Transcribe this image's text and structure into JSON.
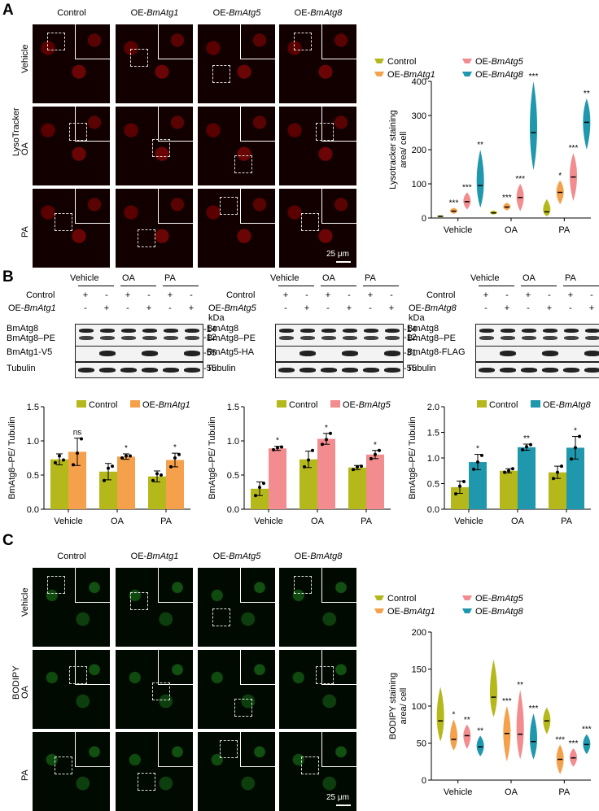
{
  "panels": {
    "a": "A",
    "b": "B",
    "c": "C"
  },
  "microscopy_columns": [
    "Control",
    "OE-BmAtg1",
    "OE-BmAtg5",
    "OE-BmAtg8"
  ],
  "microscopy_rows": [
    "Vehicle",
    "OA",
    "PA"
  ],
  "stain_a": "LysoTracker",
  "stain_c": "BODIPY",
  "scalebar_text": "25 μm",
  "western": {
    "groups": [
      "Vehicle",
      "OA",
      "PA"
    ],
    "control_label": "Control",
    "kda": "kDa",
    "signs_control": [
      "+",
      "-",
      "+",
      "-",
      "+",
      "-"
    ],
    "signs_oe": [
      "-",
      "+",
      "-",
      "+",
      "-",
      "+"
    ],
    "blots": [
      {
        "oe_label": "OE-BmAtg1",
        "rows": [
          "BmAtg8",
          "BmAtg8–PE",
          "BmAtg1-V5",
          "Tubulin"
        ],
        "markers": [
          "14",
          "12",
          "55",
          "55"
        ]
      },
      {
        "oe_label": "OE-BmAtg5",
        "rows": [
          "BmAtg8",
          "BmAtg8–PE",
          "BmAtg5-HA",
          "Tubulin"
        ],
        "markers": [
          "14",
          "12",
          "31",
          "55"
        ]
      },
      {
        "oe_label": "OE-BmAtg8",
        "rows": [
          "BmAtg8",
          "BmAtg8–PE",
          "BmAtg8-FLAG",
          "Tubulin"
        ],
        "markers": [
          "14",
          "12",
          "14",
          "55"
        ]
      }
    ]
  },
  "colors": {
    "control": "#b5b81a",
    "atg1": "#f5a04a",
    "atg5": "#f28c8f",
    "atg8": "#1f98ad"
  },
  "chart_data": [
    {
      "type": "violin",
      "id": "lyso",
      "ylabel": "Lysotracker staining area/ cell",
      "ylim": [
        0,
        400
      ],
      "yticks": [
        0,
        100,
        200,
        300,
        400
      ],
      "categories": [
        "Vehicle",
        "OA",
        "PA"
      ],
      "legend": [
        "Control",
        "OE-BmAtg1",
        "OE-BmAtg5",
        "OE-BmAtg8"
      ],
      "series": [
        {
          "name": "Control",
          "color": "#b5b81a",
          "medians": [
            5,
            15,
            18
          ],
          "ranges": [
            [
              2,
              8
            ],
            [
              10,
              22
            ],
            [
              5,
              55
            ]
          ],
          "sig": [
            "",
            "",
            ""
          ]
        },
        {
          "name": "OE-BmAtg1",
          "color": "#f5a04a",
          "medians": [
            20,
            32,
            75
          ],
          "ranges": [
            [
              12,
              30
            ],
            [
              22,
              45
            ],
            [
              40,
              110
            ]
          ],
          "sig": [
            "***",
            "***",
            "*"
          ]
        },
        {
          "name": "OE-BmAtg5",
          "color": "#f28c8f",
          "medians": [
            48,
            60,
            120
          ],
          "ranges": [
            [
              25,
              75
            ],
            [
              20,
              100
            ],
            [
              50,
              190
            ]
          ],
          "sig": [
            "***",
            "***",
            "***"
          ]
        },
        {
          "name": "OE-BmAtg8",
          "color": "#1f98ad",
          "medians": [
            95,
            250,
            280
          ],
          "ranges": [
            [
              30,
              200
            ],
            [
              140,
              400
            ],
            [
              200,
              350
            ]
          ],
          "sig": [
            "**",
            "***",
            "**"
          ]
        }
      ]
    },
    {
      "type": "bar",
      "id": "wb1",
      "ylabel": "BmAtg8–PE/ Tubulin",
      "ylim": [
        0,
        1.5
      ],
      "yticks": [
        0.0,
        0.5,
        1.0,
        1.5
      ],
      "categories": [
        "Vehicle",
        "OA",
        "PA"
      ],
      "legend": [
        "Control",
        "OE-BmAtg1"
      ],
      "series": [
        {
          "name": "Control",
          "color": "#b5b81a",
          "values": [
            0.73,
            0.55,
            0.48
          ],
          "errors": [
            0.08,
            0.12,
            0.08
          ],
          "points": [
            [
              0.68,
              0.78,
              0.72
            ],
            [
              0.42,
              0.6,
              0.63
            ],
            [
              0.42,
              0.52,
              0.5
            ]
          ]
        },
        {
          "name": "OE-BmAtg1",
          "color": "#f5a04a",
          "values": [
            0.84,
            0.77,
            0.72
          ],
          "errors": [
            0.2,
            0.04,
            0.1
          ],
          "points": [
            [
              0.65,
              0.82,
              1.03
            ],
            [
              0.75,
              0.78,
              0.78
            ],
            [
              0.62,
              0.75,
              0.8
            ]
          ]
        }
      ],
      "sig": [
        "ns",
        "*",
        "*"
      ]
    },
    {
      "type": "bar",
      "id": "wb2",
      "ylabel": "BmAtg8–PE/ Tubulin",
      "ylim": [
        0,
        1.5
      ],
      "yticks": [
        0.0,
        0.5,
        1.0,
        1.5
      ],
      "categories": [
        "Vehicle",
        "OA",
        "PA"
      ],
      "legend": [
        "Control",
        "OE-BmAtg5"
      ],
      "series": [
        {
          "name": "Control",
          "color": "#b5b81a",
          "values": [
            0.3,
            0.73,
            0.61
          ],
          "errors": [
            0.1,
            0.12,
            0.03
          ],
          "points": [
            [
              0.2,
              0.32,
              0.38
            ],
            [
              0.62,
              0.72,
              0.86
            ],
            [
              0.58,
              0.62,
              0.63
            ]
          ]
        },
        {
          "name": "OE-BmAtg5",
          "color": "#f28c8f",
          "values": [
            0.89,
            1.03,
            0.8
          ],
          "errors": [
            0.03,
            0.08,
            0.06
          ],
          "points": [
            [
              0.87,
              0.9,
              0.91
            ],
            [
              0.95,
              1.02,
              1.11
            ],
            [
              0.74,
              0.8,
              0.86
            ]
          ]
        }
      ],
      "sig": [
        "*",
        "*",
        "*"
      ]
    },
    {
      "type": "bar",
      "id": "wb3",
      "ylabel": "BmAtg8–PE/ Tubulin",
      "ylim": [
        0,
        2.0
      ],
      "yticks": [
        0.0,
        0.5,
        1.0,
        1.5,
        2.0
      ],
      "categories": [
        "Vehicle",
        "OA",
        "PA"
      ],
      "legend": [
        "Control",
        "OE-BmAtg8"
      ],
      "series": [
        {
          "name": "Control",
          "color": "#b5b81a",
          "values": [
            0.43,
            0.75,
            0.72
          ],
          "errors": [
            0.12,
            0.04,
            0.12
          ],
          "points": [
            [
              0.3,
              0.45,
              0.54
            ],
            [
              0.72,
              0.75,
              0.79
            ],
            [
              0.6,
              0.72,
              0.84
            ]
          ]
        },
        {
          "name": "OE-BmAtg8",
          "color": "#1f98ad",
          "values": [
            0.92,
            1.21,
            1.2
          ],
          "errors": [
            0.15,
            0.06,
            0.22
          ],
          "points": [
            [
              0.78,
              0.92,
              1.05
            ],
            [
              1.16,
              1.22,
              1.26
            ],
            [
              0.98,
              1.2,
              1.42
            ]
          ]
        }
      ],
      "sig": [
        "*",
        "**",
        "*"
      ]
    },
    {
      "type": "violin",
      "id": "bodipy",
      "ylabel": "BODIPY staining area/ cell",
      "ylim": [
        0,
        200
      ],
      "yticks": [
        0,
        50,
        100,
        150,
        200
      ],
      "categories": [
        "Vehicle",
        "OA",
        "PA"
      ],
      "legend": [
        "Control",
        "OE-BmAtg1",
        "OE-BmAtg5",
        "OE-BmAtg8"
      ],
      "series": [
        {
          "name": "Control",
          "color": "#b5b81a",
          "medians": [
            80,
            112,
            80
          ],
          "ranges": [
            [
              52,
              126
            ],
            [
              85,
              163
            ],
            [
              62,
              98
            ]
          ],
          "sig": [
            "",
            "",
            ""
          ]
        },
        {
          "name": "OE-BmAtg1",
          "color": "#f5a04a",
          "medians": [
            55,
            63,
            28
          ],
          "ranges": [
            [
              40,
              82
            ],
            [
              25,
              100
            ],
            [
              8,
              48
            ]
          ],
          "sig": [
            "*",
            "***",
            "***"
          ]
        },
        {
          "name": "OE-BmAtg5",
          "color": "#f28c8f",
          "medians": [
            60,
            62,
            30
          ],
          "ranges": [
            [
              42,
              75
            ],
            [
              28,
              122
            ],
            [
              18,
              43
            ]
          ],
          "sig": [
            "**",
            "**",
            "***"
          ]
        },
        {
          "name": "OE-BmAtg8",
          "color": "#1f98ad",
          "medians": [
            45,
            52,
            48
          ],
          "ranges": [
            [
              32,
              60
            ],
            [
              28,
              90
            ],
            [
              35,
              62
            ]
          ],
          "sig": [
            "**",
            "***",
            "***"
          ]
        }
      ]
    }
  ]
}
